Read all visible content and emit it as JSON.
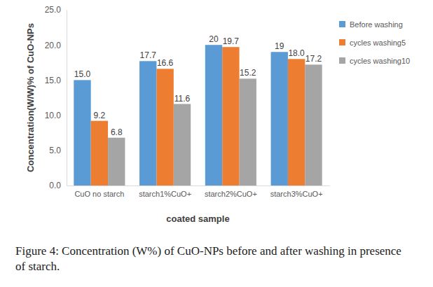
{
  "chart_data": {
    "type": "bar",
    "caption": "Figure 4: Concentration (W%) of CuO-NPs before and after washing in presence of starch.",
    "x_label": "coated sample",
    "y_label": "Concentration(W/W)% of CuO-NPs",
    "categories": [
      "CuO no starch",
      "starch1%CuO+",
      "starch2%CuO+",
      "starch3%CuO+"
    ],
    "series": [
      {
        "name": "Before washing",
        "color": "#5b9bd5",
        "values": [
          15.0,
          17.7,
          20,
          19
        ],
        "value_labels": [
          "15.0",
          "17.7",
          "20",
          "19"
        ]
      },
      {
        "name": "cycles washing5",
        "color": "#ed7d31",
        "values": [
          9.2,
          16.6,
          19.7,
          18.0
        ],
        "value_labels": [
          "9.2",
          "16.6",
          "19.7",
          "18.0"
        ]
      },
      {
        "name": "cycles washing10",
        "color": "#a5a5a5",
        "values": [
          6.8,
          11.6,
          15.2,
          17.2
        ],
        "value_labels": [
          "6.8",
          "11.6",
          "15.2",
          "17.2"
        ]
      }
    ],
    "ylim": [
      0,
      25
    ],
    "yticks": [
      {
        "value": 0,
        "label": "0.0"
      },
      {
        "value": 5,
        "label": "5.0"
      },
      {
        "value": 10,
        "label": "10.0"
      },
      {
        "value": 15,
        "label": "15.0"
      },
      {
        "value": 20,
        "label": "20.0"
      },
      {
        "value": 25,
        "label": "25.0"
      }
    ],
    "grid": false,
    "legend": "right",
    "data_labels": true
  }
}
